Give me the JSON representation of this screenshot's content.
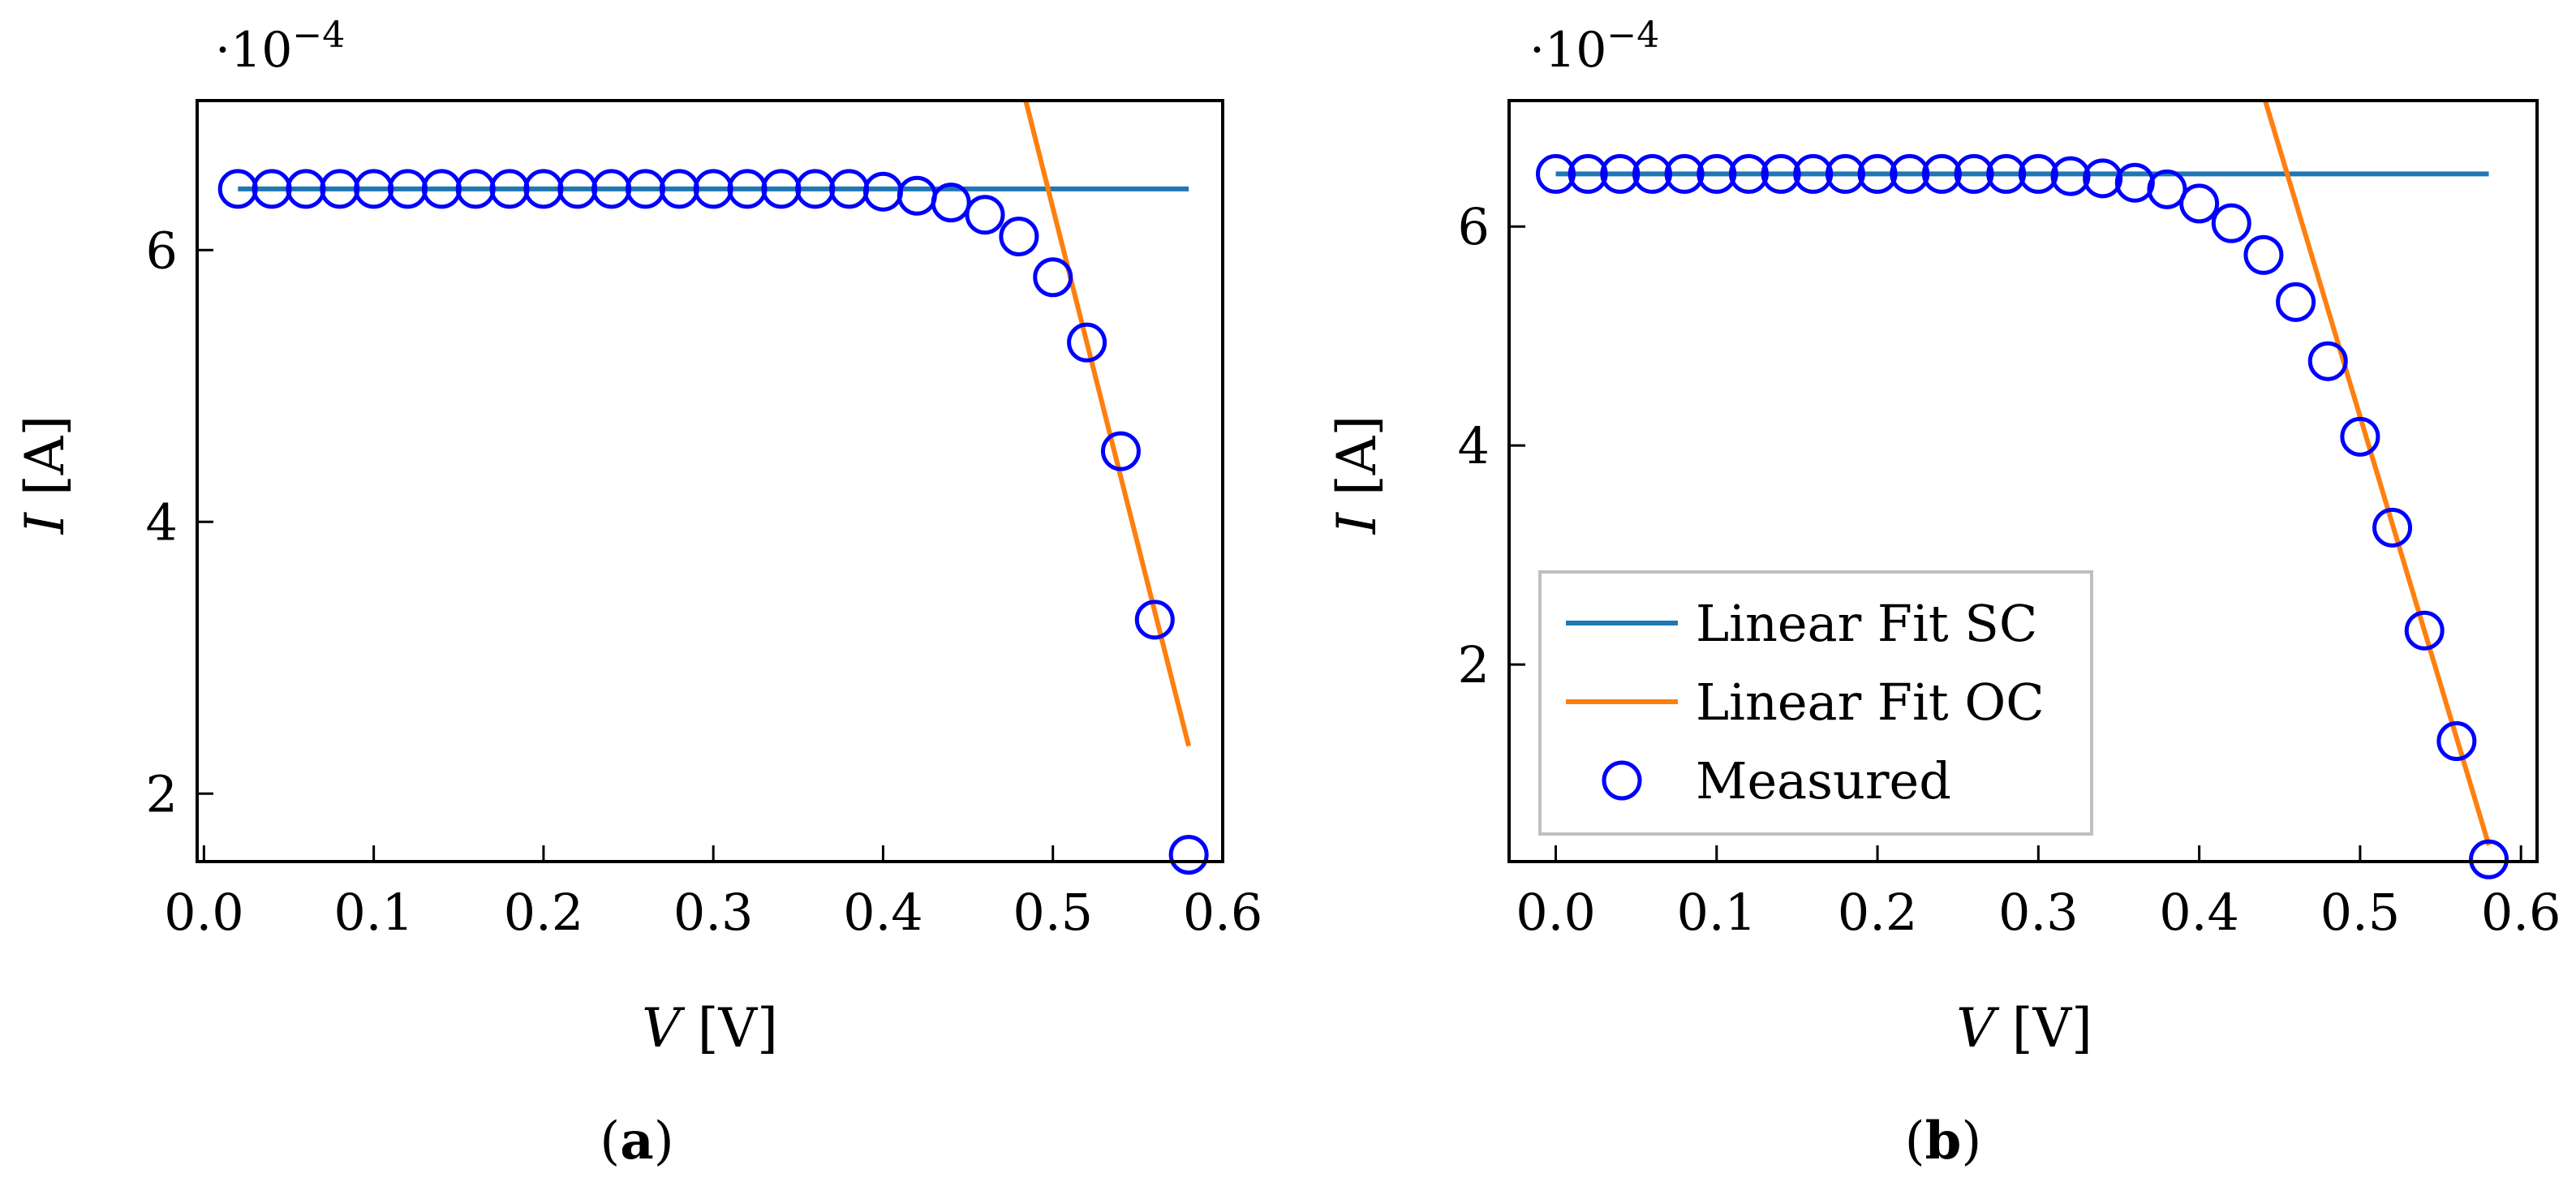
{
  "chart_data": [
    {
      "type": "line+scatter",
      "panel": "a",
      "caption_open": "(",
      "caption_letter": "a",
      "caption_close": ")",
      "xlabel_var": "V",
      "xlabel_unit": " [V]",
      "ylabel_var": "I",
      "ylabel_unit": " [A]",
      "y_multiplier_prefix": "·10",
      "y_multiplier_exponent": "−4",
      "xlim": [
        -0.004,
        0.6
      ],
      "ylim": [
        1.5,
        7.1
      ],
      "x_ticks": [
        0.0,
        0.1,
        0.2,
        0.3,
        0.4,
        0.5,
        0.6
      ],
      "x_tick_labels": [
        "0.0",
        "0.1",
        "0.2",
        "0.3",
        "0.4",
        "0.5",
        "0.6"
      ],
      "y_ticks": [
        2,
        4,
        6
      ],
      "y_tick_labels": [
        "2",
        "4",
        "6"
      ],
      "grid": false,
      "legend": null,
      "series": [
        {
          "name": "Linear Fit SC",
          "kind": "line",
          "color": "#1f77b4",
          "x": [
            0.02,
            0.58
          ],
          "y": [
            6.45,
            6.45
          ]
        },
        {
          "name": "Linear Fit OC",
          "kind": "line",
          "color": "#ff7f0e",
          "x": [
            0.484,
            0.58
          ],
          "y": [
            7.1,
            2.35
          ]
        },
        {
          "name": "Measured",
          "kind": "scatter",
          "color": "#0000ff",
          "x": [
            0.02,
            0.04,
            0.06,
            0.08,
            0.1,
            0.12,
            0.14,
            0.16,
            0.18,
            0.2,
            0.22,
            0.24,
            0.26,
            0.28,
            0.3,
            0.32,
            0.34,
            0.36,
            0.38,
            0.4,
            0.42,
            0.44,
            0.46,
            0.48,
            0.5,
            0.52,
            0.54,
            0.56,
            0.58
          ],
          "y": [
            6.45,
            6.45,
            6.45,
            6.45,
            6.45,
            6.45,
            6.45,
            6.45,
            6.45,
            6.45,
            6.45,
            6.45,
            6.45,
            6.45,
            6.45,
            6.45,
            6.45,
            6.45,
            6.45,
            6.43,
            6.4,
            6.35,
            6.26,
            6.1,
            5.8,
            5.32,
            4.52,
            3.28,
            1.55
          ]
        }
      ]
    },
    {
      "type": "line+scatter",
      "panel": "b",
      "caption_open": "(",
      "caption_letter": "b",
      "caption_close": ")",
      "xlabel_var": "V",
      "xlabel_unit": " [V]",
      "ylabel_var": "I",
      "ylabel_unit": " [A]",
      "y_multiplier_prefix": "·10",
      "y_multiplier_exponent": "−4",
      "xlim": [
        -0.029,
        0.61
      ],
      "ylim": [
        0.2,
        7.15
      ],
      "x_ticks": [
        0.0,
        0.1,
        0.2,
        0.3,
        0.4,
        0.5,
        0.6
      ],
      "x_tick_labels": [
        "0.0",
        "0.1",
        "0.2",
        "0.3",
        "0.4",
        "0.5",
        "0.6"
      ],
      "y_ticks": [
        2,
        4,
        6
      ],
      "y_tick_labels": [
        "2",
        "4",
        "6"
      ],
      "grid": false,
      "legend": "bottom-left",
      "series": [
        {
          "name": "Linear Fit SC",
          "kind": "line",
          "color": "#1f77b4",
          "x": [
            0.0,
            0.58
          ],
          "y": [
            6.48,
            6.48
          ]
        },
        {
          "name": "Linear Fit OC",
          "kind": "line",
          "color": "#ff7f0e",
          "x": [
            0.441,
            0.58
          ],
          "y": [
            7.15,
            0.35
          ]
        },
        {
          "name": "Measured",
          "kind": "scatter",
          "color": "#0000ff",
          "x": [
            0.0,
            0.02,
            0.04,
            0.06,
            0.08,
            0.1,
            0.12,
            0.14,
            0.16,
            0.18,
            0.2,
            0.22,
            0.24,
            0.26,
            0.28,
            0.3,
            0.32,
            0.34,
            0.36,
            0.38,
            0.4,
            0.42,
            0.44,
            0.46,
            0.48,
            0.5,
            0.52,
            0.54,
            0.56,
            0.58
          ],
          "y": [
            6.48,
            6.48,
            6.48,
            6.48,
            6.48,
            6.48,
            6.48,
            6.48,
            6.48,
            6.48,
            6.48,
            6.48,
            6.48,
            6.48,
            6.48,
            6.48,
            6.46,
            6.44,
            6.4,
            6.34,
            6.21,
            6.03,
            5.74,
            5.31,
            4.77,
            4.08,
            3.25,
            2.31,
            1.3,
            0.22
          ]
        }
      ]
    }
  ]
}
